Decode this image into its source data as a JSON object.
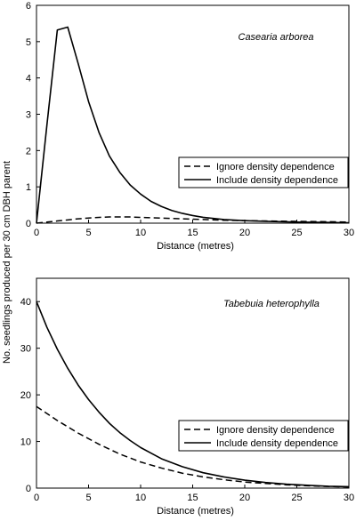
{
  "ylabel_shared": "No. seedlings produced per 30 cm DBH parent",
  "chart_data": [
    {
      "type": "line",
      "title": "Casearia arborea",
      "xlabel": "Distance (metres)",
      "ylabel": "No. seedlings produced per 30 cm DBH parent",
      "xlim": [
        0,
        30
      ],
      "ylim": [
        0,
        6
      ],
      "xticks": [
        0,
        5,
        10,
        15,
        20,
        25,
        30
      ],
      "yticks": [
        0,
        1,
        2,
        3,
        4,
        5,
        6
      ],
      "grid": false,
      "legend_position": "center-right",
      "series": [
        {
          "name": "Ignore density dependence",
          "style": "dashed",
          "x": [
            0,
            1,
            2,
            3,
            4,
            5,
            6,
            7,
            8,
            9,
            10,
            12,
            14,
            16,
            18,
            20,
            22,
            25,
            28,
            30
          ],
          "y": [
            0.0,
            0.03,
            0.06,
            0.09,
            0.12,
            0.14,
            0.16,
            0.17,
            0.17,
            0.17,
            0.16,
            0.14,
            0.12,
            0.1,
            0.08,
            0.07,
            0.06,
            0.05,
            0.04,
            0.03
          ]
        },
        {
          "name": "Include density dependence",
          "style": "solid",
          "x": [
            0,
            1,
            2,
            3,
            4,
            5,
            6,
            7,
            8,
            9,
            10,
            11,
            12,
            13,
            14,
            15,
            16,
            18,
            20,
            22,
            25,
            28,
            30
          ],
          "y": [
            0.0,
            2.7,
            5.32,
            5.4,
            4.4,
            3.35,
            2.5,
            1.85,
            1.4,
            1.05,
            0.8,
            0.6,
            0.46,
            0.35,
            0.27,
            0.21,
            0.16,
            0.1,
            0.07,
            0.05,
            0.03,
            0.02,
            0.01
          ]
        }
      ]
    },
    {
      "type": "line",
      "title": "Tabebuia heterophylla",
      "xlabel": "Distance (metres)",
      "ylabel": "No. seedlings produced per 30 cm DBH parent",
      "xlim": [
        0,
        30
      ],
      "ylim": [
        0,
        45
      ],
      "xticks": [
        0,
        5,
        10,
        15,
        20,
        25,
        30
      ],
      "yticks": [
        0,
        10,
        20,
        30,
        40
      ],
      "grid": false,
      "legend_position": "bottom-right",
      "series": [
        {
          "name": "Ignore density dependence",
          "style": "dashed",
          "x": [
            0,
            2,
            4,
            6,
            8,
            10,
            12,
            14,
            16,
            18,
            20,
            22,
            24,
            26,
            28,
            30
          ],
          "y": [
            17.5,
            14.5,
            11.8,
            9.4,
            7.3,
            5.6,
            4.3,
            3.2,
            2.4,
            1.8,
            1.3,
            1.0,
            0.7,
            0.5,
            0.35,
            0.25
          ]
        },
        {
          "name": "Include density dependence",
          "style": "solid",
          "x": [
            0,
            1,
            2,
            3,
            4,
            5,
            6,
            7,
            8,
            9,
            10,
            12,
            14,
            16,
            18,
            20,
            22,
            24,
            26,
            28,
            30
          ],
          "y": [
            40,
            34.5,
            29.8,
            25.7,
            22.1,
            19.0,
            16.3,
            13.9,
            11.9,
            10.2,
            8.7,
            6.3,
            4.6,
            3.3,
            2.4,
            1.7,
            1.2,
            0.85,
            0.6,
            0.4,
            0.3
          ]
        }
      ]
    }
  ]
}
